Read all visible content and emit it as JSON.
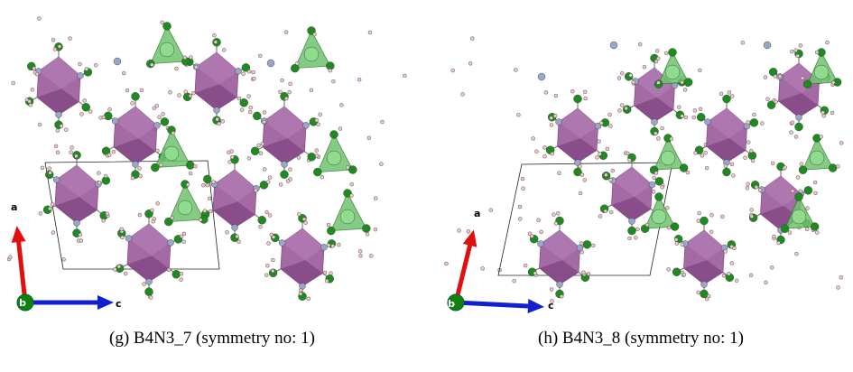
{
  "panels": [
    {
      "axes": {
        "a": "a",
        "b": "b",
        "c": "c"
      },
      "caption": "(g)  B4N3_7 (symmetry no: 1)"
    },
    {
      "axes": {
        "a": "a",
        "b": "b",
        "c": "c"
      },
      "caption": "(h)  B4N3_8 (symmetry no: 1)"
    }
  ]
}
